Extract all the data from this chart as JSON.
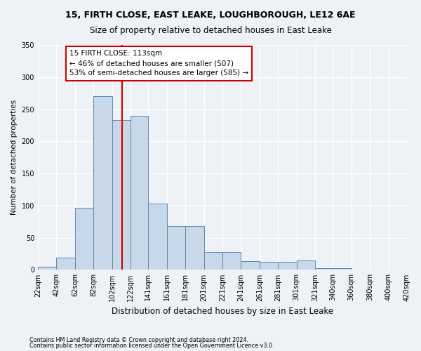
{
  "title1": "15, FIRTH CLOSE, EAST LEAKE, LOUGHBOROUGH, LE12 6AE",
  "title2": "Size of property relative to detached houses in East Leake",
  "xlabel": "Distribution of detached houses by size in East Leake",
  "ylabel": "Number of detached properties",
  "footer1": "Contains HM Land Registry data © Crown copyright and database right 2024.",
  "footer2": "Contains public sector information licensed under the Open Government Licence v3.0.",
  "annotation_line1": "15 FIRTH CLOSE: 113sqm",
  "annotation_line2": "← 46% of detached houses are smaller (507)",
  "annotation_line3": "53% of semi-detached houses are larger (585) →",
  "property_size": 113,
  "bar_color": "#c8d8e8",
  "bar_edge_color": "#5a8ab0",
  "vline_color": "#cc0000",
  "annotation_box_color": "#ffffff",
  "annotation_box_edge": "#cc0000",
  "bins": [
    22,
    42,
    62,
    82,
    102,
    122,
    141,
    161,
    181,
    201,
    221,
    241,
    261,
    281,
    301,
    321,
    340,
    360,
    380,
    400,
    420
  ],
  "counts": [
    5,
    19,
    97,
    270,
    233,
    240,
    103,
    68,
    68,
    28,
    28,
    14,
    12,
    12,
    15,
    3,
    3,
    0,
    0,
    1
  ],
  "ylim": [
    0,
    350
  ],
  "yticks": [
    0,
    50,
    100,
    150,
    200,
    250,
    300,
    350
  ],
  "background_color": "#eef2f7",
  "grid_color": "#ffffff"
}
